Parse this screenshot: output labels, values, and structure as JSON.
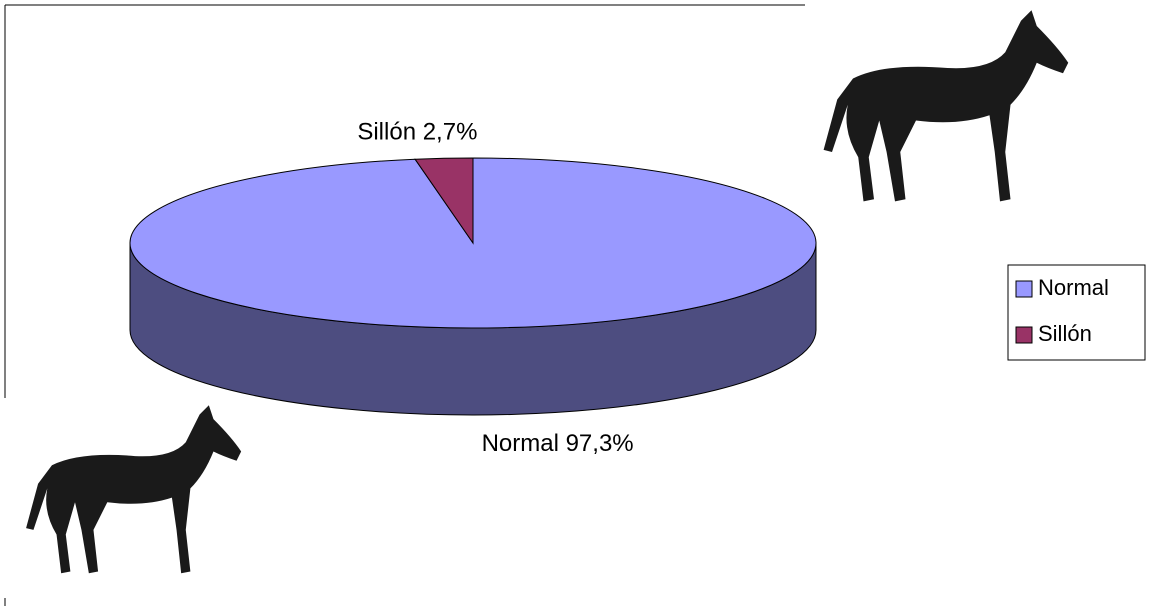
{
  "chart_data": {
    "type": "pie3d",
    "categories": [
      "Normal",
      "Sillón"
    ],
    "values": [
      97.3,
      2.7
    ],
    "value_labels": [
      "Normal 97,3%",
      "Sillón 2,7%"
    ],
    "colors": [
      "#9999ff",
      "#993366"
    ],
    "legend": "right"
  }
}
